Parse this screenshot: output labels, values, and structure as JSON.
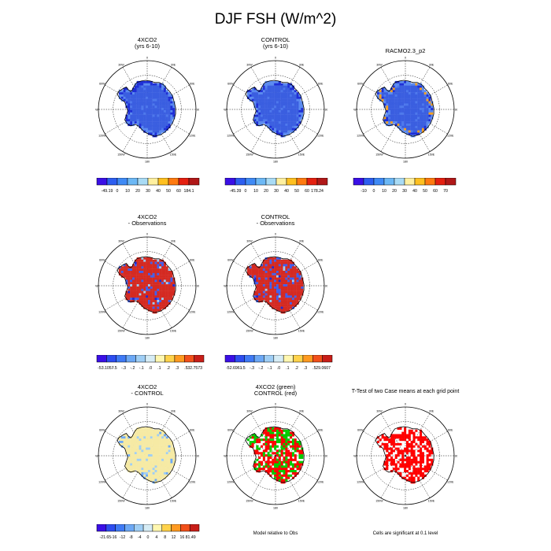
{
  "title": "DJF FSH (W/m^2)",
  "lon_labels": [
    "0",
    "30E",
    "60E",
    "90E",
    "120E",
    "150E",
    "180",
    "150W",
    "120W",
    "90W",
    "60W",
    "30W"
  ],
  "colors": {
    "ice_blue": "#3a5ee0",
    "pos_red": "#d42a22",
    "diff_yellow": "#f6eaa4",
    "sig_red": "#ff0000",
    "green": "#00cc00"
  },
  "panels": [
    {
      "id": "p1",
      "title_lines": [
        "4XCO2",
        "(yrs 6-10)"
      ],
      "fill": "mean"
    },
    {
      "id": "p2",
      "title_lines": [
        "CONTROL",
        "(yrs 6-10)"
      ],
      "fill": "mean"
    },
    {
      "id": "p3",
      "title_lines": [
        "RACMO2.3_p2"
      ],
      "fill": "mean"
    },
    {
      "id": "p4",
      "title_lines": [
        "4XCO2",
        "- Observations"
      ],
      "fill": "bias"
    },
    {
      "id": "p5",
      "title_lines": [
        "CONTROL",
        "- Observations"
      ],
      "fill": "bias"
    },
    {
      "id": "p6",
      "title_lines": [
        "4XCO2",
        "- CONTROL"
      ],
      "fill": "diff"
    },
    {
      "id": "p7",
      "title_lines": [
        "4XCO2 (green)",
        "CONTROL (red)"
      ],
      "fill": "compare"
    },
    {
      "id": "p8",
      "title_lines": [
        "T-Test of two Case means at each grid point"
      ],
      "fill": "ttest"
    }
  ],
  "colorbars": [
    {
      "id": "cb1",
      "labels": [
        "-49.19",
        "0",
        "10",
        "20",
        "30",
        "40",
        "50",
        "60",
        "184.1"
      ],
      "colors": [
        "#3a0fe6",
        "#2d5ef0",
        "#3f8af5",
        "#6cb8f5",
        "#a9dbf5",
        "#fff0a0",
        "#ffc020",
        "#ff7a10",
        "#e42010",
        "#b01818"
      ]
    },
    {
      "id": "cb2",
      "labels": [
        "-45.39",
        "0",
        "10",
        "20",
        "30",
        "40",
        "50",
        "60",
        "178.24"
      ],
      "colors": [
        "#3a0fe6",
        "#2d5ef0",
        "#3f8af5",
        "#6cb8f5",
        "#a9dbf5",
        "#fff0a0",
        "#ffc020",
        "#ff7a10",
        "#e42010",
        "#b01818"
      ]
    },
    {
      "id": "cb3",
      "labels": [
        "-10",
        "0",
        "10",
        "20",
        "30",
        "40",
        "50",
        "60",
        "70"
      ],
      "colors": [
        "#3a0fe6",
        "#2d5ef0",
        "#3f8af5",
        "#6cb8f5",
        "#a9dbf5",
        "#fff0a0",
        "#ffc020",
        "#ff7a10",
        "#e42010",
        "#b01818"
      ]
    },
    {
      "id": "cb4",
      "labels": [
        "-53.1057",
        "-.5",
        "-.3",
        "-.2",
        "-.1",
        ".0",
        ".1",
        ".2",
        ".3",
        ".5",
        "32.7573"
      ],
      "colors": [
        "#3a0fe6",
        "#2d4df0",
        "#3f7af5",
        "#6ca8f5",
        "#9fcef5",
        "#d6ecf5",
        "#fff7b0",
        "#ffd24a",
        "#ff9a20",
        "#f2501a",
        "#c81e18"
      ]
    },
    {
      "id": "cb5",
      "labels": [
        "-52.6961",
        "-.5",
        "-.3",
        "-.2",
        "-.1",
        ".0",
        ".1",
        ".2",
        ".3",
        ".5",
        "29.0607"
      ],
      "colors": [
        "#3a0fe6",
        "#2d4df0",
        "#3f7af5",
        "#6ca8f5",
        "#9fcef5",
        "#d6ecf5",
        "#fff7b0",
        "#ffd24a",
        "#ff9a20",
        "#f2501a",
        "#c81e18"
      ]
    },
    {
      "id": "cb6",
      "labels": [
        "-21.65",
        "-16",
        "-12",
        "-8",
        "-4",
        "0",
        "4",
        "8",
        "12",
        "16",
        "81.49"
      ],
      "colors": [
        "#3a0fe6",
        "#2d4df0",
        "#3f7af5",
        "#6ca8f5",
        "#9fcef5",
        "#d6ecf5",
        "#fff7b0",
        "#ffd24a",
        "#ff9a20",
        "#f2501a",
        "#c81e18"
      ]
    }
  ],
  "footers": {
    "p7": "Model relative to Obs",
    "p8": "Cells are significant at 0.1 level"
  }
}
